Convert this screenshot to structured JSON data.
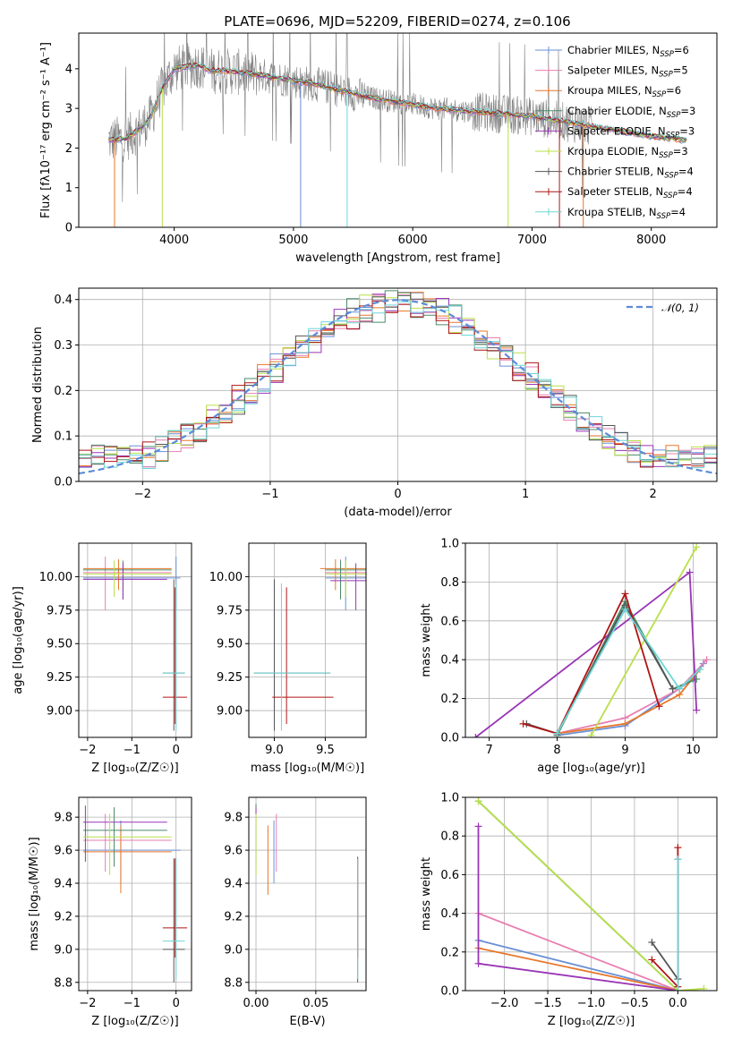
{
  "figure": {
    "title": "PLATE=0696, MJD=52209, FIBERID=0274, z=0.106"
  },
  "colors": {
    "Chabrier MILES": "#6a8fd6",
    "Salpeter MILES": "#e77fb0",
    "Kroupa MILES": "#e8772a",
    "Chabrier ELODIE": "#4a8a6a",
    "Salpeter ELODIE": "#9a35b5",
    "Kroupa ELODIE": "#b8e04a",
    "Chabrier STELIB": "#555555",
    "Salpeter STELIB": "#b01515",
    "Kroupa STELIB": "#6dd6d6",
    "data": "#808080",
    "normal": "#5b8bd8"
  },
  "chart_data": [
    {
      "id": "spectrum",
      "type": "line",
      "title": "PLATE=0696, MJD=52209, FIBERID=0274, z=0.106",
      "xlabel": "wavelength [Angstrom, rest frame]",
      "ylabel": "Flux [fλ10⁻¹⁷ erg cm⁻² s⁻¹ A⁻¹]",
      "xlim": [
        3200,
        8550
      ],
      "ylim": [
        0,
        4.9
      ],
      "xticks": [
        4000,
        5000,
        6000,
        7000,
        8000
      ],
      "yticks": [
        0,
        1,
        2,
        3,
        4
      ],
      "grid": false,
      "legend_position": "top-right",
      "legend": [
        {
          "name": "Chabrier MILES",
          "main": "Chabrier MILES, N",
          "sub": "SSP",
          "suffix": "=6"
        },
        {
          "name": "Salpeter MILES",
          "main": "Salpeter MILES, N",
          "sub": "SSP",
          "suffix": "=5"
        },
        {
          "name": "Kroupa MILES",
          "main": "Kroupa MILES, N",
          "sub": "SSP",
          "suffix": "=6"
        },
        {
          "name": "Chabrier ELODIE",
          "main": "Chabrier ELODIE, N",
          "sub": "SSP",
          "suffix": "=3"
        },
        {
          "name": "Salpeter ELODIE",
          "main": "Salpeter ELODIE, N",
          "sub": "SSP",
          "suffix": "=3"
        },
        {
          "name": "Kroupa ELODIE",
          "main": "Kroupa ELODIE, N",
          "sub": "SSP",
          "suffix": "=3"
        },
        {
          "name": "Chabrier STELIB",
          "main": "Chabrier STELIB, N",
          "sub": "SSP",
          "suffix": "=4"
        },
        {
          "name": "Salpeter STELIB",
          "main": "Salpeter STELIB, N",
          "sub": "SSP",
          "suffix": "=4"
        },
        {
          "name": "Kroupa STELIB",
          "main": "Kroupa STELIB, N",
          "sub": "SSP",
          "suffix": "=4"
        }
      ],
      "model_continuum": {
        "x": [
          3450,
          3600,
          3700,
          3800,
          3900,
          4000,
          4100,
          4200,
          4300,
          4400,
          4600,
          4800,
          5000,
          5200,
          5400,
          5600,
          5800,
          6000,
          6200,
          6400,
          6600,
          6800,
          7000,
          7200,
          7500,
          7800,
          8000,
          8300
        ],
        "y": [
          2.2,
          2.25,
          2.45,
          2.75,
          3.5,
          4.0,
          4.05,
          4.1,
          3.95,
          3.95,
          3.9,
          3.8,
          3.7,
          3.6,
          3.45,
          3.3,
          3.2,
          3.1,
          3.0,
          2.95,
          2.9,
          2.85,
          2.8,
          2.7,
          2.55,
          2.4,
          2.3,
          2.2
        ]
      }
    },
    {
      "id": "residuals",
      "type": "line",
      "xlabel": "(data-model)/error",
      "ylabel": "Normed distribution",
      "xlim": [
        -2.5,
        2.5
      ],
      "ylim": [
        0,
        0.425
      ],
      "xticks": [
        -2,
        -1,
        0,
        1,
        2
      ],
      "xtick_labels": [
        "−2",
        "−1",
        "0",
        "1",
        "2"
      ],
      "yticks": [
        0.0,
        0.1,
        0.2,
        0.3,
        0.4
      ],
      "ytick_labels": [
        "0.0",
        "0.1",
        "0.2",
        "0.3",
        "0.4"
      ],
      "grid": true,
      "legend": [
        "𝒩(0, 1)"
      ],
      "legend_position": "top-right",
      "bin_width": 0.1
    },
    {
      "id": "age-vs-Z",
      "type": "scatter",
      "xlabel": "Z [log₁₀(Z/Z☉)]",
      "ylabel": "age  [log₁₀(age/yr)]",
      "xlim": [
        -2.2,
        0.35
      ],
      "ylim": [
        8.8,
        10.25
      ],
      "xticks": [
        -2,
        -1,
        0
      ],
      "xtick_labels": [
        "−2",
        "−1",
        "0"
      ],
      "yticks": [
        9.0,
        9.25,
        9.5,
        9.75,
        10.0
      ],
      "ytick_labels": [
        "9.00",
        "9.25",
        "9.50",
        "9.75",
        "10.00"
      ],
      "grid": true
    },
    {
      "id": "age-vs-mass",
      "type": "scatter",
      "xlabel": "mass [log₁₀(M/M☉)]",
      "xlim": [
        8.75,
        9.9
      ],
      "ylim": [
        8.8,
        10.25
      ],
      "xticks": [
        9.0,
        9.5
      ],
      "xtick_labels": [
        "9.0",
        "9.5"
      ],
      "yticks": [
        9.0,
        9.25,
        9.5,
        9.75,
        10.0
      ],
      "ytick_labels": [
        "9.00",
        "9.25",
        "9.50",
        "9.75",
        "10.00"
      ],
      "grid": true
    },
    {
      "id": "weight-vs-age",
      "type": "line",
      "xlabel": "age  [log₁₀(age/yr)]",
      "ylabel": "mass weight",
      "xlim": [
        6.65,
        10.35
      ],
      "ylim": [
        0,
        1.0
      ],
      "xticks": [
        7,
        8,
        9,
        10
      ],
      "xtick_labels": [
        "7",
        "8",
        "9",
        "10"
      ],
      "yticks": [
        0,
        0.2,
        0.4,
        0.6,
        0.8,
        1.0
      ],
      "ytick_labels": [
        "0.0",
        "0.2",
        "0.4",
        "0.6",
        "0.8",
        "1.0"
      ],
      "grid": true,
      "series": [
        {
          "name": "Chabrier MILES",
          "x": [
            8.0,
            9.0,
            10.0,
            10.15
          ],
          "y": [
            0.01,
            0.06,
            0.3,
            0.38
          ]
        },
        {
          "name": "Salpeter MILES",
          "x": [
            8.0,
            9.0,
            9.8,
            10.2
          ],
          "y": [
            0.02,
            0.1,
            0.25,
            0.4
          ]
        },
        {
          "name": "Kroupa MILES",
          "x": [
            8.0,
            9.0,
            9.8,
            10.1
          ],
          "y": [
            0.02,
            0.07,
            0.22,
            0.35
          ]
        },
        {
          "name": "Chabrier ELODIE",
          "x": [
            8.0,
            9.0,
            9.7,
            10.05
          ],
          "y": [
            0.01,
            0.7,
            0.25,
            0.3
          ]
        },
        {
          "name": "Salpeter ELODIE",
          "x": [
            6.8,
            9.95,
            10.05
          ],
          "y": [
            0.0,
            0.85,
            0.14
          ]
        },
        {
          "name": "Kroupa ELODIE",
          "x": [
            8.5,
            10.05
          ],
          "y": [
            0.01,
            0.98
          ]
        },
        {
          "name": "Chabrier STELIB",
          "x": [
            7.55,
            8.0,
            9.0,
            9.7
          ],
          "y": [
            0.07,
            0.02,
            0.68,
            0.25
          ]
        },
        {
          "name": "Salpeter STELIB",
          "x": [
            7.5,
            8.0,
            9.0,
            9.5
          ],
          "y": [
            0.07,
            0.02,
            0.74,
            0.16
          ]
        },
        {
          "name": "Kroupa STELIB",
          "x": [
            8.0,
            9.0,
            9.8,
            10.1
          ],
          "y": [
            0.02,
            0.66,
            0.25,
            0.35
          ]
        }
      ]
    },
    {
      "id": "mass-vs-Z",
      "type": "scatter",
      "xlabel": "Z [log₁₀(Z/Z☉)]",
      "ylabel": "mass [log₁₀(M/M☉)]",
      "xlim": [
        -2.2,
        0.35
      ],
      "ylim": [
        8.75,
        9.92
      ],
      "xticks": [
        -2,
        -1,
        0
      ],
      "xtick_labels": [
        "−2",
        "−1",
        "0"
      ],
      "yticks": [
        8.8,
        9.0,
        9.2,
        9.4,
        9.6,
        9.8
      ],
      "ytick_labels": [
        "8.8",
        "9.0",
        "9.2",
        "9.4",
        "9.6",
        "9.8"
      ],
      "grid": true
    },
    {
      "id": "mass-vs-EBV",
      "type": "scatter",
      "xlabel": "E(B-V)",
      "xlim": [
        -0.006,
        0.092
      ],
      "ylim": [
        8.75,
        9.92
      ],
      "xticks": [
        0.0,
        0.05
      ],
      "xtick_labels": [
        "0.00",
        "0.05"
      ],
      "yticks": [
        8.8,
        9.0,
        9.2,
        9.4,
        9.6,
        9.8
      ],
      "ytick_labels": [
        "8.8",
        "9.0",
        "9.2",
        "9.4",
        "9.6",
        "9.8"
      ],
      "grid": true
    },
    {
      "id": "weight-vs-Z",
      "type": "line",
      "xlabel": "Z [log₁₀(Z/Z☉)]",
      "ylabel": "mass weight",
      "xlim": [
        -2.45,
        0.45
      ],
      "ylim": [
        0,
        1.0
      ],
      "xticks": [
        -2.0,
        -1.5,
        -1.0,
        -0.5,
        0.0
      ],
      "xtick_labels": [
        "−2.0",
        "−1.5",
        "−1.0",
        "−0.5",
        "0.0"
      ],
      "yticks": [
        0,
        0.2,
        0.4,
        0.6,
        0.8,
        1.0
      ],
      "ytick_labels": [
        "0.0",
        "0.2",
        "0.4",
        "0.6",
        "0.8",
        "1.0"
      ],
      "grid": true,
      "series": [
        {
          "name": "Chabrier MILES",
          "x": [
            -2.3,
            0.0
          ],
          "y": [
            0.26,
            0.0
          ]
        },
        {
          "name": "Salpeter MILES",
          "x": [
            -2.3,
            0.0
          ],
          "y": [
            0.4,
            0.0
          ]
        },
        {
          "name": "Kroupa MILES",
          "x": [
            -2.3,
            0.0
          ],
          "y": [
            0.22,
            0.0
          ]
        },
        {
          "name": "Chabrier ELODIE",
          "x": [
            -2.3,
            0.0
          ],
          "y": [
            0.98,
            0.0
          ]
        },
        {
          "name": "Salpeter ELODIE",
          "x": [
            -2.3,
            -2.3,
            0.0
          ],
          "y": [
            0.85,
            0.14,
            0.0
          ]
        },
        {
          "name": "Kroupa ELODIE",
          "x": [
            -2.3,
            0.0,
            0.3
          ],
          "y": [
            0.98,
            0.0,
            0.01
          ]
        },
        {
          "name": "Chabrier STELIB",
          "x": [
            -0.3,
            0.0,
            0.0
          ],
          "y": [
            0.25,
            0.06,
            0.68
          ]
        },
        {
          "name": "Salpeter STELIB",
          "x": [
            -0.3,
            0.0,
            0.0
          ],
          "y": [
            0.16,
            0.02,
            0.74
          ]
        },
        {
          "name": "Kroupa STELIB",
          "x": [
            0.0,
            0.0
          ],
          "y": [
            0.0,
            0.68
          ]
        }
      ]
    }
  ]
}
